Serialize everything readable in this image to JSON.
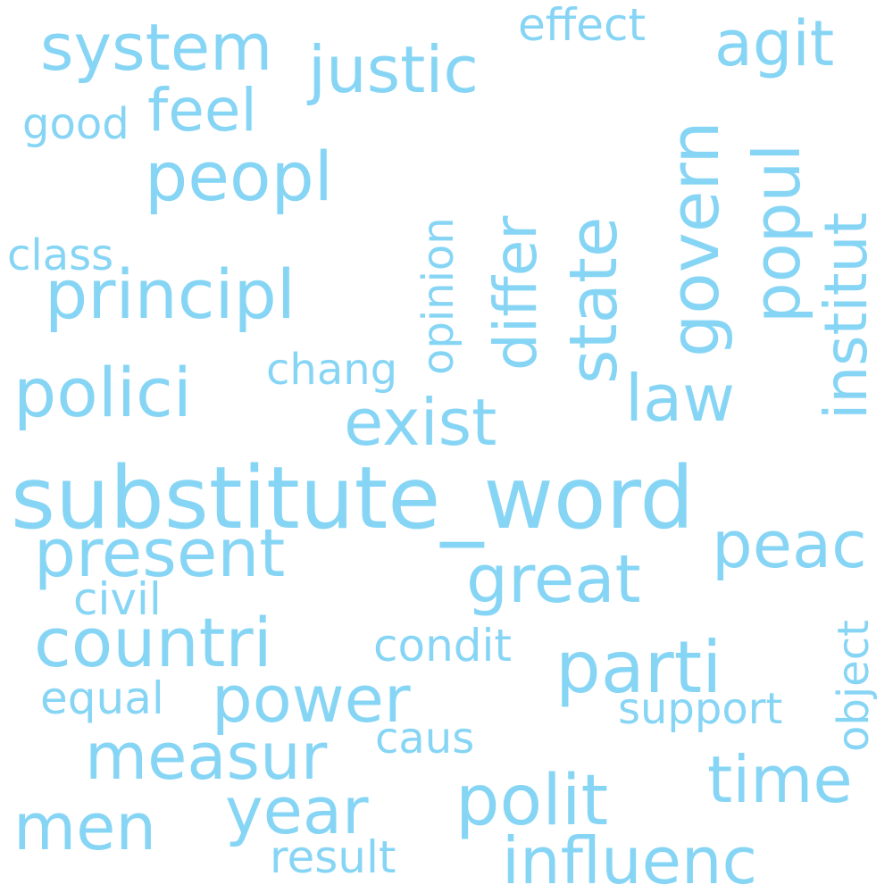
{
  "word_color": "#87d5f5",
  "background": "#ffffff",
  "words": {
    "substitute_word": "substitute_word",
    "peopl": "peopl",
    "principl": "principl",
    "polici": "polici",
    "countri": "countri",
    "system": "system",
    "justic": "justic",
    "agit": "agit",
    "feel": "feel",
    "exist": "exist",
    "law": "law",
    "present": "present",
    "great": "great",
    "peac": "peac",
    "parti": "parti",
    "power": "power",
    "measur": "measur",
    "polit": "polit",
    "time": "time",
    "year": "year",
    "men": "men",
    "influenc": "influenc",
    "effect": "effect",
    "good": "good",
    "class": "class",
    "chang": "chang",
    "civil": "civil",
    "condit": "condit",
    "equal": "equal",
    "support": "support",
    "caus": "caus",
    "result": "result",
    "govern": "govern",
    "state": "state",
    "differ": "differ",
    "popul": "popul",
    "institut": "institut",
    "opinion": "opinion",
    "object": "object"
  }
}
